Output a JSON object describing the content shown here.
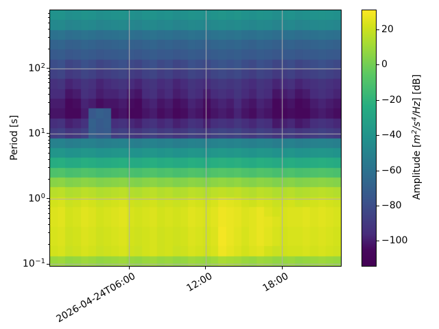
{
  "chart_data": {
    "type": "heatmap",
    "description": "Spectrogram of probabilistic power spectral density amplitude versus period and time",
    "ylabel": "Period [s]",
    "y_scale": "log",
    "period_range_s": [
      0.093,
      780
    ],
    "y_ticks": [
      {
        "period_s": 100,
        "mantissa": "10",
        "exponent": "2"
      },
      {
        "period_s": 10,
        "mantissa": "10",
        "exponent": "1"
      },
      {
        "period_s": 1,
        "mantissa": "10",
        "exponent": "0"
      },
      {
        "period_s": 0.1,
        "mantissa": "10",
        "exponent": "−1"
      }
    ],
    "x_ticks": [
      {
        "hour": 6,
        "label": "2026-04-24T06:00"
      },
      {
        "hour": 12,
        "label": "12:00"
      },
      {
        "hour": 18,
        "label": "18:00"
      }
    ],
    "time_ref": "2026-04-24T00:00",
    "time_range_hours": [
      -0.2,
      22.6
    ],
    "grid": true,
    "grid_color": "#b0b0b0",
    "colormap": "viridis",
    "colormap_stops": [
      [
        0,
        "#440154"
      ],
      [
        0.0625,
        "#46085c"
      ],
      [
        0.125,
        "#472d7b"
      ],
      [
        0.25,
        "#3b528b"
      ],
      [
        0.375,
        "#2c728e"
      ],
      [
        0.5,
        "#21918c"
      ],
      [
        0.625,
        "#27ad81"
      ],
      [
        0.75,
        "#5cc863"
      ],
      [
        0.875,
        "#aadc32"
      ],
      [
        0.9375,
        "#d2e21b"
      ],
      [
        1,
        "#fde725"
      ]
    ],
    "clim_db": [
      -114,
      31
    ],
    "colorbar_label": "Amplitude [m²/s⁴/Hz] [dB]",
    "colorbar_label_parts": [
      {
        "t": "Amplitude ["
      },
      {
        "t": "m",
        "i": true
      },
      {
        "t": "2",
        "i": true,
        "sup": true
      },
      {
        "t": "/s",
        "i": true
      },
      {
        "t": "4",
        "i": true,
        "sup": true
      },
      {
        "t": "/Hz",
        "i": true
      },
      {
        "t": "] [dB]"
      }
    ],
    "colorbar_ticks": [
      {
        "value": 20,
        "label": "20"
      },
      {
        "value": 0,
        "label": "0"
      },
      {
        "value": -20,
        "label": "−20"
      },
      {
        "value": -40,
        "label": "−40"
      },
      {
        "value": -60,
        "label": "−60"
      },
      {
        "value": -80,
        "label": "−80"
      },
      {
        "value": -100,
        "label": "−100"
      }
    ],
    "times_hours": [
      0.1,
      0.7,
      1.3,
      1.9,
      2.5,
      3.1,
      3.7,
      4.3,
      4.9,
      5.5,
      6.1,
      6.7,
      7.3,
      7.9,
      8.5,
      9.1,
      9.7,
      10.3,
      10.9,
      11.5,
      12.1,
      12.7,
      13.3,
      13.9,
      14.5,
      15.1,
      15.7,
      16.3,
      16.9,
      17.5,
      18.1,
      18.7,
      19.3,
      19.9,
      20.5,
      21.1,
      21.7,
      22.3
    ],
    "periods_s": [
      745,
      519,
      362,
      252,
      176,
      123,
      86,
      60,
      42,
      29,
      20,
      14,
      9.9,
      6.9,
      4.8,
      3.3,
      2.3,
      1.6,
      1.1,
      0.79,
      0.55,
      0.38,
      0.27,
      0.19,
      0.13,
      0.092
    ],
    "values_db": [
      [
        -41,
        -40,
        -43,
        -42,
        -40,
        -41,
        -43,
        -42,
        -41,
        -40,
        -42,
        -43,
        -41,
        -40,
        -42,
        -41,
        -43,
        -42,
        -40,
        -41,
        -42,
        -40,
        -39,
        -40,
        -39,
        -41,
        -42,
        -40,
        -41,
        -43,
        -42,
        -41,
        -43,
        -42,
        -41,
        -40,
        -41,
        -42
      ],
      [
        -47,
        -46,
        -49,
        -48,
        -46,
        -47,
        -49,
        -48,
        -47,
        -46,
        -48,
        -49,
        -47,
        -46,
        -48,
        -47,
        -49,
        -48,
        -46,
        -47,
        -48,
        -46,
        -45,
        -46,
        -45,
        -47,
        -48,
        -46,
        -47,
        -49,
        -48,
        -47,
        -49,
        -48,
        -47,
        -46,
        -47,
        -48
      ],
      [
        -60,
        -59,
        -62,
        -61,
        -59,
        -60,
        -62,
        -61,
        -60,
        -59,
        -61,
        -62,
        -60,
        -59,
        -61,
        -60,
        -62,
        -61,
        -59,
        -60,
        -61,
        -59,
        -58,
        -59,
        -58,
        -60,
        -61,
        -59,
        -60,
        -62,
        -61,
        -60,
        -62,
        -61,
        -60,
        -59,
        -60,
        -61
      ],
      [
        -68,
        -67,
        -70,
        -69,
        -67,
        -68,
        -70,
        -69,
        -68,
        -67,
        -69,
        -70,
        -68,
        -67,
        -69,
        -68,
        -70,
        -69,
        -67,
        -68,
        -69,
        -67,
        -66,
        -67,
        -66,
        -68,
        -69,
        -67,
        -68,
        -70,
        -69,
        -68,
        -70,
        -69,
        -68,
        -67,
        -68,
        -69
      ],
      [
        -73,
        -72,
        -75,
        -74,
        -72,
        -73,
        -75,
        -74,
        -73,
        -72,
        -74,
        -75,
        -73,
        -72,
        -74,
        -73,
        -75,
        -74,
        -72,
        -73,
        -74,
        -72,
        -71,
        -72,
        -71,
        -73,
        -74,
        -72,
        -73,
        -75,
        -74,
        -73,
        -75,
        -74,
        -73,
        -72,
        -73,
        -74
      ],
      [
        -80,
        -78,
        -84,
        -82,
        -78,
        -80,
        -84,
        -82,
        -80,
        -78,
        -82,
        -84,
        -80,
        -78,
        -82,
        -80,
        -84,
        -82,
        -78,
        -80,
        -82,
        -78,
        -76,
        -78,
        -76,
        -80,
        -82,
        -78,
        -80,
        -84,
        -82,
        -80,
        -84,
        -82,
        -80,
        -78,
        -80,
        -82
      ],
      [
        -86,
        -84,
        -90,
        -88,
        -84,
        -86,
        -90,
        -88,
        -86,
        -84,
        -88,
        -90,
        -86,
        -84,
        -88,
        -86,
        -90,
        -88,
        -84,
        -86,
        -88,
        -84,
        -82,
        -84,
        -82,
        -86,
        -88,
        -84,
        -86,
        -90,
        -88,
        -86,
        -90,
        -88,
        -86,
        -84,
        -86,
        -88
      ],
      [
        -94,
        -92,
        -98,
        -96,
        -92,
        -94,
        -98,
        -96,
        -94,
        -92,
        -96,
        -98,
        -94,
        -92,
        -96,
        -94,
        -98,
        -96,
        -92,
        -94,
        -96,
        -92,
        -90,
        -92,
        -90,
        -94,
        -96,
        -92,
        -94,
        -98,
        -96,
        -94,
        -98,
        -96,
        -94,
        -92,
        -94,
        -96
      ],
      [
        -96,
        -96,
        -102,
        -100,
        -94,
        -96,
        -100,
        -98,
        -98,
        -96,
        -100,
        -102,
        -96,
        -94,
        -98,
        -96,
        -100,
        -98,
        -94,
        -96,
        -100,
        -96,
        -94,
        -96,
        -92,
        -96,
        -98,
        -94,
        -96,
        -102,
        -100,
        -98,
        -102,
        -100,
        -96,
        -94,
        -96,
        -98
      ],
      [
        -100,
        -100,
        -106,
        -104,
        -98,
        -100,
        -104,
        -102,
        -102,
        -100,
        -104,
        -106,
        -100,
        -98,
        -102,
        -100,
        -104,
        -102,
        -98,
        -100,
        -104,
        -100,
        -98,
        -100,
        -96,
        -100,
        -102,
        -98,
        -100,
        -106,
        -104,
        -102,
        -106,
        -104,
        -100,
        -98,
        -100,
        -102
      ],
      [
        -102,
        -102,
        -106,
        -106,
        -100,
        -74,
        -70,
        -72,
        -104,
        -102,
        -106,
        -106,
        -102,
        -100,
        -104,
        -102,
        -106,
        -104,
        -100,
        -102,
        -106,
        -102,
        -100,
        -102,
        -98,
        -102,
        -104,
        -100,
        -102,
        -106,
        -106,
        -104,
        -106,
        -106,
        -102,
        -100,
        -102,
        -104
      ],
      [
        -95,
        -93,
        -99,
        -97,
        -93,
        -69,
        -73,
        -71,
        -95,
        -93,
        -97,
        -99,
        -95,
        -93,
        -97,
        -95,
        -99,
        -97,
        -93,
        -95,
        -99,
        -95,
        -93,
        -95,
        -91,
        -95,
        -97,
        -93,
        -95,
        -101,
        -99,
        -97,
        -101,
        -99,
        -95,
        -93,
        -95,
        -97
      ],
      [
        -88,
        -86,
        -92,
        -90,
        -86,
        -70,
        -74,
        -72,
        -88,
        -86,
        -90,
        -92,
        -88,
        -86,
        -90,
        -88,
        -92,
        -90,
        -86,
        -88,
        -90,
        -86,
        -84,
        -86,
        -84,
        -88,
        -90,
        -86,
        -88,
        -92,
        -90,
        -88,
        -92,
        -90,
        -88,
        -86,
        -88,
        -90
      ],
      [
        -51,
        -50,
        -53,
        -52,
        -50,
        -51,
        -53,
        -52,
        -51,
        -50,
        -52,
        -53,
        -51,
        -50,
        -52,
        -51,
        -53,
        -52,
        -50,
        -51,
        -52,
        -50,
        -49,
        -50,
        -49,
        -51,
        -52,
        -50,
        -51,
        -53,
        -52,
        -51,
        -53,
        -52,
        -51,
        -50,
        -51,
        -52
      ],
      [
        -39,
        -38,
        -41,
        -40,
        -38,
        -39,
        -41,
        -40,
        -39,
        -38,
        -40,
        -41,
        -39,
        -38,
        -40,
        -39,
        -41,
        -40,
        -38,
        -39,
        -40,
        -38,
        -37,
        -38,
        -37,
        -39,
        -40,
        -38,
        -39,
        -41,
        -40,
        -39,
        -41,
        -40,
        -39,
        -38,
        -39,
        -40
      ],
      [
        -24,
        -23,
        -26,
        -25,
        -23,
        -24,
        -26,
        -25,
        -24,
        -23,
        -25,
        -26,
        -24,
        -23,
        -25,
        -24,
        -26,
        -25,
        -23,
        -24,
        -25,
        -23,
        -22,
        -23,
        -22,
        -24,
        -25,
        -23,
        -24,
        -26,
        -25,
        -24,
        -26,
        -25,
        -24,
        -23,
        -24,
        -25
      ],
      [
        -10,
        -9,
        -12,
        -11,
        -9,
        -10,
        -12,
        -11,
        -10,
        -9,
        -11,
        -12,
        -10,
        -9,
        -11,
        -10,
        -12,
        -11,
        -9,
        -10,
        -11,
        -9,
        -8,
        -9,
        -8,
        -10,
        -11,
        -9,
        -10,
        -12,
        -11,
        -10,
        -12,
        -11,
        -10,
        -9,
        -10,
        -11
      ],
      [
        5,
        6,
        3,
        4,
        6,
        5,
        3,
        4,
        5,
        6,
        4,
        3,
        5,
        6,
        4,
        5,
        3,
        4,
        6,
        5,
        4,
        6,
        7,
        6,
        7,
        5,
        4,
        6,
        5,
        3,
        4,
        5,
        3,
        4,
        5,
        6,
        5,
        4
      ],
      [
        16,
        17,
        14,
        15,
        17,
        16,
        14,
        15,
        16,
        17,
        15,
        14,
        16,
        17,
        15,
        16,
        14,
        15,
        17,
        16,
        15,
        17,
        18,
        17,
        18,
        16,
        15,
        17,
        16,
        14,
        15,
        16,
        14,
        15,
        16,
        17,
        16,
        15
      ],
      [
        22,
        23,
        20,
        21,
        23,
        22,
        20,
        21,
        22,
        23,
        21,
        20,
        21,
        22,
        20,
        21,
        20,
        21,
        23,
        22,
        21,
        23,
        26,
        25,
        24,
        22,
        21,
        23,
        22,
        20,
        21,
        22,
        20,
        21,
        22,
        23,
        22,
        21
      ],
      [
        24,
        25,
        22,
        23,
        25,
        24,
        22,
        23,
        24,
        25,
        23,
        22,
        23,
        24,
        22,
        23,
        22,
        23,
        25,
        24,
        23,
        25,
        28,
        27,
        26,
        24,
        25,
        27,
        24,
        22,
        23,
        24,
        24,
        25,
        24,
        25,
        24,
        23
      ],
      [
        24,
        25,
        22,
        23,
        25,
        24,
        22,
        23,
        24,
        25,
        23,
        22,
        23,
        24,
        22,
        23,
        22,
        23,
        25,
        24,
        23,
        25,
        28,
        27,
        26,
        24,
        25,
        27,
        26,
        24,
        23,
        24,
        24,
        25,
        24,
        25,
        24,
        23
      ],
      [
        23,
        24,
        21,
        22,
        24,
        23,
        21,
        22,
        23,
        24,
        22,
        21,
        22,
        23,
        21,
        22,
        21,
        22,
        24,
        23,
        22,
        24,
        29,
        27,
        25,
        23,
        25,
        27,
        25,
        23,
        22,
        23,
        23,
        24,
        23,
        24,
        23,
        22
      ],
      [
        23,
        24,
        21,
        22,
        24,
        23,
        21,
        22,
        23,
        24,
        22,
        21,
        22,
        23,
        21,
        22,
        21,
        22,
        24,
        23,
        22,
        24,
        29,
        27,
        25,
        23,
        25,
        27,
        25,
        23,
        22,
        23,
        23,
        24,
        23,
        24,
        23,
        22
      ],
      [
        22,
        23,
        20,
        21,
        23,
        22,
        20,
        21,
        22,
        23,
        21,
        20,
        22,
        23,
        21,
        22,
        20,
        21,
        23,
        22,
        21,
        23,
        28,
        26,
        24,
        22,
        24,
        25,
        22,
        20,
        21,
        22,
        22,
        23,
        22,
        23,
        22,
        21
      ],
      [
        9,
        10,
        7,
        8,
        10,
        9,
        7,
        8,
        9,
        10,
        8,
        7,
        9,
        10,
        8,
        9,
        7,
        8,
        10,
        9,
        8,
        10,
        13,
        12,
        11,
        9,
        8,
        10,
        9,
        7,
        8,
        9,
        7,
        8,
        9,
        10,
        9,
        8
      ]
    ]
  }
}
